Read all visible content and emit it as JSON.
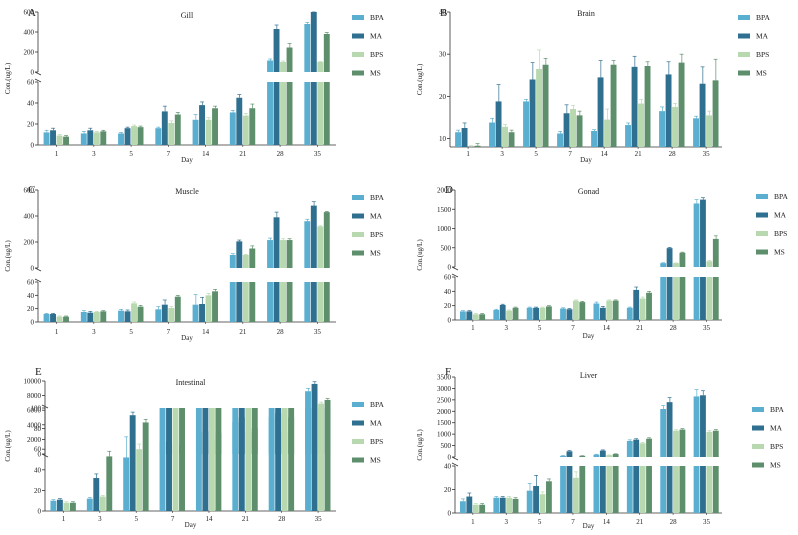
{
  "colors": {
    "BPA": "#5aafd0",
    "MA": "#2f6f8f",
    "BPS": "#b8d9b0",
    "MS": "#5e8f6c"
  },
  "chart_data": [
    {
      "type": "bar",
      "panel": "A",
      "title": "Gill",
      "xlabel": "Day",
      "ylabel": "Con.(ug/L)",
      "categories": [
        "1",
        "3",
        "5",
        "7",
        "14",
        "21",
        "28",
        "35"
      ],
      "axis_break": {
        "lower": [
          0,
          60
        ],
        "upper": [
          60,
          600
        ]
      },
      "lower_ticks": [
        0,
        20,
        40,
        60
      ],
      "upper_ticks": [
        0,
        200,
        400,
        600
      ],
      "legend": [
        "BPA",
        "MA",
        "BPS",
        "MS"
      ],
      "legend_position": "right",
      "series": [
        {
          "name": "BPA",
          "values": [
            12,
            11,
            11,
            16,
            24,
            31,
            115,
            480
          ],
          "errors": [
            2,
            2,
            1,
            1,
            5,
            2,
            15,
            15
          ]
        },
        {
          "name": "MA",
          "values": [
            14,
            14,
            16,
            32,
            38,
            45,
            430,
            600
          ],
          "errors": [
            2,
            2,
            1,
            5,
            3,
            3,
            40,
            10
          ]
        },
        {
          "name": "BPS",
          "values": [
            9,
            12,
            18,
            21,
            24,
            28,
            100,
            100
          ],
          "errors": [
            1,
            1,
            1,
            2,
            2,
            2,
            10,
            5
          ]
        },
        {
          "name": "MS",
          "values": [
            8,
            13,
            17,
            29,
            35,
            35,
            245,
            380
          ],
          "errors": [
            1,
            1,
            1,
            2,
            2,
            4,
            40,
            15
          ]
        }
      ]
    },
    {
      "type": "bar",
      "panel": "B",
      "title": "Brain",
      "xlabel": "Day",
      "ylabel": "Con.(ug/L)",
      "categories": [
        "1",
        "3",
        "5",
        "7",
        "14",
        "21",
        "28",
        "35"
      ],
      "ylim": [
        0,
        40
      ],
      "yticks": [
        10,
        20,
        30,
        40
      ],
      "ybase": 8,
      "legend": [
        "BPA",
        "MA",
        "BPS",
        "MS"
      ],
      "legend_position": "right",
      "series": [
        {
          "name": "BPA",
          "values": [
            11.5,
            13.8,
            18.8,
            11.2,
            11.8,
            13.2,
            16.5,
            14.8
          ],
          "errors": [
            0.5,
            1,
            0.5,
            0.5,
            0.3,
            0.5,
            1,
            0.5
          ]
        },
        {
          "name": "MA",
          "values": [
            12.5,
            18.8,
            24.0,
            16.0,
            24.5,
            27.0,
            25.2,
            23.0
          ],
          "errors": [
            1.2,
            4,
            4,
            2,
            4,
            2.5,
            3,
            4
          ]
        },
        {
          "name": "BPS",
          "values": [
            8.0,
            12.8,
            26.5,
            17.0,
            14.5,
            18.3,
            17.5,
            15.5
          ],
          "errors": [
            0.3,
            0.5,
            4.5,
            0.8,
            2.5,
            1,
            0.8,
            1
          ]
        },
        {
          "name": "MS",
          "values": [
            8.3,
            11.5,
            27.5,
            15.5,
            27.5,
            27.2,
            28.0,
            23.8
          ],
          "errors": [
            0.5,
            0.5,
            1.5,
            1,
            1,
            1,
            2,
            5
          ]
        }
      ]
    },
    {
      "type": "bar",
      "panel": "C",
      "title": "Muscle",
      "xlabel": "Day",
      "ylabel": "Con.(ug/L)",
      "categories": [
        "1",
        "3",
        "5",
        "7",
        "14",
        "21",
        "28",
        "35"
      ],
      "axis_break": {
        "lower": [
          0,
          60
        ],
        "upper": [
          60,
          600
        ]
      },
      "lower_ticks": [
        0,
        20,
        40,
        60
      ],
      "upper_ticks": [
        0,
        200,
        400,
        600
      ],
      "legend": [
        "BPA",
        "MA",
        "BPS",
        "MS"
      ],
      "legend_position": "right",
      "series": [
        {
          "name": "BPA",
          "values": [
            12,
            15,
            17,
            19,
            26,
            100,
            215,
            360
          ],
          "errors": [
            1,
            2,
            2,
            4,
            15,
            10,
            15,
            15
          ]
        },
        {
          "name": "MA",
          "values": [
            12,
            14,
            16,
            26,
            27,
            205,
            390,
            480
          ],
          "errors": [
            1,
            2,
            2,
            7,
            10,
            10,
            40,
            30
          ]
        },
        {
          "name": "BPS",
          "values": [
            8,
            15,
            28,
            21,
            40,
            100,
            215,
            320
          ],
          "errors": [
            1,
            1,
            2,
            2,
            3,
            5,
            10,
            5
          ]
        },
        {
          "name": "MS",
          "values": [
            8,
            16,
            23,
            38,
            46,
            150,
            215,
            430
          ],
          "errors": [
            1,
            1,
            2,
            2,
            3,
            20,
            10,
            5
          ]
        }
      ]
    },
    {
      "type": "bar",
      "panel": "D",
      "title": "Gonad",
      "xlabel": "Day",
      "ylabel": "Con.(ug/L)",
      "categories": [
        "1",
        "3",
        "5",
        "7",
        "14",
        "21",
        "28",
        "35"
      ],
      "axis_break": {
        "lower": [
          0,
          60
        ],
        "upper": [
          60,
          2000
        ]
      },
      "lower_ticks": [
        0,
        20,
        40,
        60
      ],
      "upper_ticks": [
        0,
        500,
        1000,
        1500,
        2000
      ],
      "legend": [
        "BPA",
        "MA",
        "BPS",
        "MS"
      ],
      "legend_position": "right",
      "series": [
        {
          "name": "BPA",
          "values": [
            12,
            14,
            17,
            16,
            23,
            17,
            100,
            1650
          ],
          "errors": [
            1,
            1,
            1,
            1,
            2,
            1,
            10,
            100
          ]
        },
        {
          "name": "MA",
          "values": [
            12,
            21,
            17,
            15,
            17,
            42,
            490,
            1750
          ],
          "errors": [
            1,
            1,
            1,
            1,
            2,
            4,
            20,
            50
          ]
        },
        {
          "name": "BPS",
          "values": [
            8,
            13,
            17,
            27,
            27,
            30,
            100,
            150
          ],
          "errors": [
            1,
            1,
            1,
            1,
            1,
            2,
            5,
            20
          ]
        },
        {
          "name": "MS",
          "values": [
            8,
            17,
            19,
            25,
            27,
            38,
            370,
            730
          ],
          "errors": [
            1,
            1,
            1,
            1,
            1,
            2,
            15,
            80
          ]
        }
      ]
    },
    {
      "type": "bar",
      "panel": "E",
      "title": "Intestinal",
      "xlabel": "Day",
      "ylabel": "Con.(ug/L)",
      "categories": [
        "1",
        "3",
        "5",
        "7",
        "14",
        "21",
        "28",
        "35"
      ],
      "axis_break": {
        "lower": [
          0,
          100
        ],
        "upper": [
          100,
          10000
        ]
      },
      "lower_ticks": [
        0,
        20,
        40,
        60,
        80,
        100
      ],
      "upper_ticks": [
        0,
        2000,
        4000,
        6000,
        8000,
        10000
      ],
      "legend": [
        "BPA",
        "MA",
        "BPS",
        "MS"
      ],
      "legend_position": "right",
      "series": [
        {
          "name": "BPA",
          "values": [
            10,
            12,
            52,
            1700,
            3000,
            4400,
            5000,
            8600
          ],
          "errors": [
            1,
            1,
            20,
            150,
            200,
            400,
            300,
            400
          ]
        },
        {
          "name": "MA",
          "values": [
            11,
            32,
            93,
            1700,
            3100,
            5000,
            5600,
            9600
          ],
          "errors": [
            1,
            4,
            3,
            150,
            200,
            200,
            500,
            300
          ]
        },
        {
          "name": "BPS",
          "values": [
            8,
            14,
            60,
            1200,
            1900,
            3000,
            3000,
            6900
          ],
          "errors": [
            1,
            1,
            5,
            100,
            100,
            200,
            200,
            200
          ]
        },
        {
          "name": "MS",
          "values": [
            8,
            53,
            86,
            1200,
            2900,
            3500,
            5000,
            7400
          ],
          "errors": [
            1,
            5,
            3,
            100,
            100,
            300,
            100,
            200
          ]
        }
      ]
    },
    {
      "type": "bar",
      "panel": "F",
      "title": "Liver",
      "xlabel": "Day",
      "ylabel": "Con.(ug/L)",
      "categories": [
        "1",
        "3",
        "5",
        "7",
        "14",
        "21",
        "28",
        "35"
      ],
      "axis_break": {
        "lower": [
          0,
          40
        ],
        "upper": [
          40,
          3500
        ]
      },
      "lower_ticks": [
        0,
        20,
        40
      ],
      "upper_ticks": [
        0,
        500,
        1000,
        1500,
        2000,
        2500,
        3000,
        3500
      ],
      "legend": [
        "BPA",
        "MA",
        "BPS",
        "MS"
      ],
      "legend_position": "right",
      "series": [
        {
          "name": "BPA",
          "values": [
            10,
            13,
            19,
            50,
            100,
            700,
            2100,
            2650
          ],
          "errors": [
            2,
            1,
            6,
            10,
            20,
            50,
            150,
            300
          ]
        },
        {
          "name": "MA",
          "values": [
            14,
            13,
            23,
            250,
            280,
            760,
            2400,
            2700
          ],
          "errors": [
            3,
            1,
            9,
            30,
            30,
            40,
            200,
            200
          ]
        },
        {
          "name": "BPS",
          "values": [
            7,
            13,
            16,
            30,
            80,
            600,
            1150,
            1100
          ],
          "errors": [
            1,
            1,
            2,
            5,
            10,
            40,
            40,
            50
          ]
        },
        {
          "name": "MS",
          "values": [
            7,
            12,
            27,
            50,
            130,
            800,
            1200,
            1150
          ],
          "errors": [
            1,
            1,
            2,
            5,
            10,
            40,
            40,
            50
          ]
        }
      ]
    }
  ]
}
